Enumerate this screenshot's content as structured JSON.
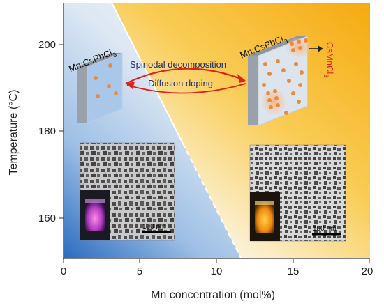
{
  "axes": {
    "xlabel": "Mn concentration (mol%)",
    "ylabel": "Temperature (°C)",
    "xticks": [
      "0",
      "5",
      "10",
      "15",
      "20"
    ],
    "yticks": [
      "200",
      "180",
      "160"
    ]
  },
  "left_cube": {
    "label_main": "Mn:CsPbCl",
    "label_sub": "3"
  },
  "right_cube": {
    "label_main": "Mn:CsPbCl",
    "label_sub": "3",
    "phase_main": "CsMnCl",
    "phase_sub": "3"
  },
  "process": {
    "forward": "Spinodal decomposition",
    "backward": "Diffusion doping"
  },
  "tem": {
    "left_scale": "100 nm",
    "right_scale": "100 nm"
  },
  "colors": {
    "doped_region": "#8fb4df",
    "segregated_region": "#f6b526",
    "dot": "#ec8a3c",
    "arrow": "#e0201b"
  }
}
